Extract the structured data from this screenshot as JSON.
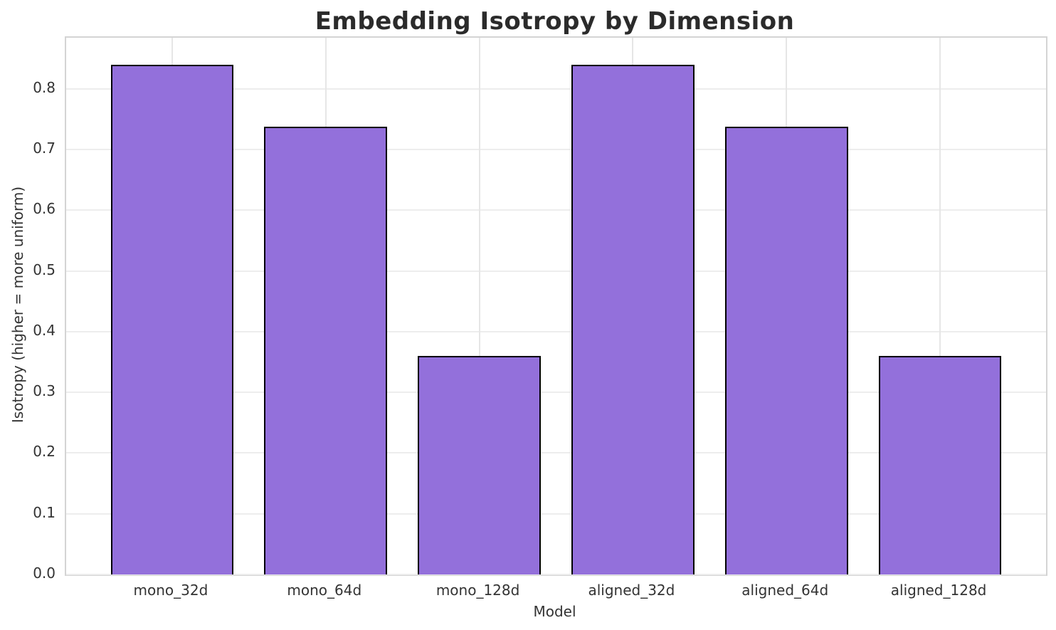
{
  "chart_data": {
    "type": "bar",
    "title": "Embedding Isotropy by Dimension",
    "xlabel": "Model",
    "ylabel": "Isotropy (higher = more uniform)",
    "categories": [
      "mono_32d",
      "mono_64d",
      "mono_128d",
      "aligned_32d",
      "aligned_64d",
      "aligned_128d"
    ],
    "values": [
      0.84,
      0.737,
      0.36,
      0.84,
      0.737,
      0.36
    ],
    "ytick_labels": [
      "0.0",
      "0.1",
      "0.2",
      "0.3",
      "0.4",
      "0.5",
      "0.6",
      "0.7",
      "0.8"
    ],
    "yticks": [
      0.0,
      0.1,
      0.2,
      0.3,
      0.4,
      0.5,
      0.6,
      0.7,
      0.8
    ],
    "ylim": [
      0,
      0.884
    ],
    "grid": true,
    "legend_position": "none",
    "bar_color": "#9370DB",
    "bar_edge_color": "#000000",
    "grid_color": "#ededed",
    "spine_color": "#d4d4d4",
    "title_color": "#2b2b2b",
    "text_color": "#333333"
  }
}
